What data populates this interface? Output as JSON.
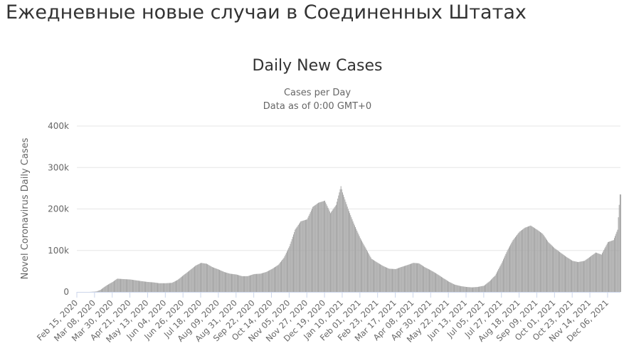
{
  "page": {
    "heading": "Ежедневные новые случаи в Соединенных Штатах"
  },
  "chart_data": {
    "type": "bar",
    "title": "Daily New Cases",
    "subtitle": [
      "Cases per Day",
      "Data as of 0:00 GMT+0"
    ],
    "ylabel": "Novel Coronavirus Daily Cases",
    "xlabel": "",
    "ylim": [
      0,
      400000
    ],
    "yticks": [
      0,
      100000,
      200000,
      300000,
      400000
    ],
    "ytick_labels": [
      "0",
      "100k",
      "200k",
      "300k",
      "400k"
    ],
    "grid": true,
    "legend": "none",
    "bar_color": "#a3a3a3",
    "x_start": "2020-02-15",
    "x_end": "2021-12-22",
    "xtick_labels": [
      "Feb 15, 2020",
      "Mar 08, 2020",
      "Mar 30, 2020",
      "Apr 21, 2020",
      "May 13, 2020",
      "Jun 04, 2020",
      "Jun 26, 2020",
      "Jul 18, 2020",
      "Aug 09, 2020",
      "Aug 31, 2020",
      "Sep 22, 2020",
      "Oct 14, 2020",
      "Nov 05, 2020",
      "Nov 27, 2020",
      "Dec 19, 2020",
      "Jan 10, 2021",
      "Feb 01, 2021",
      "Feb 23, 2021",
      "Mar 17, 2021",
      "Apr 08, 2021",
      "Apr 30, 2021",
      "May 22, 2021",
      "Jun 13, 2021",
      "Jul 05, 2021",
      "Jul 27, 2021",
      "Aug 18, 2021",
      "Sep 09, 2021",
      "Oct 01, 2021",
      "Oct 23, 2021",
      "Nov 14, 2021",
      "Dec 06, 2021"
    ],
    "series": [
      {
        "values": [
          [
            "2020-02-15",
            0
          ],
          [
            "2020-03-01",
            0
          ],
          [
            "2020-03-10",
            1000
          ],
          [
            "2020-03-15",
            5000
          ],
          [
            "2020-03-22",
            15000
          ],
          [
            "2020-03-30",
            24000
          ],
          [
            "2020-04-05",
            32000
          ],
          [
            "2020-04-12",
            31000
          ],
          [
            "2020-04-21",
            30000
          ],
          [
            "2020-04-28",
            28000
          ],
          [
            "2020-05-05",
            26000
          ],
          [
            "2020-05-13",
            24000
          ],
          [
            "2020-05-20",
            23000
          ],
          [
            "2020-05-27",
            21000
          ],
          [
            "2020-06-04",
            21000
          ],
          [
            "2020-06-12",
            22000
          ],
          [
            "2020-06-19",
            29000
          ],
          [
            "2020-06-26",
            40000
          ],
          [
            "2020-07-04",
            52000
          ],
          [
            "2020-07-11",
            63000
          ],
          [
            "2020-07-18",
            70000
          ],
          [
            "2020-07-25",
            68000
          ],
          [
            "2020-08-01",
            60000
          ],
          [
            "2020-08-09",
            54000
          ],
          [
            "2020-08-16",
            48000
          ],
          [
            "2020-08-23",
            44000
          ],
          [
            "2020-08-31",
            42000
          ],
          [
            "2020-09-07",
            38000
          ],
          [
            "2020-09-14",
            38000
          ],
          [
            "2020-09-22",
            43000
          ],
          [
            "2020-09-30",
            44000
          ],
          [
            "2020-10-07",
            48000
          ],
          [
            "2020-10-14",
            55000
          ],
          [
            "2020-10-22",
            65000
          ],
          [
            "2020-10-29",
            82000
          ],
          [
            "2020-11-05",
            110000
          ],
          [
            "2020-11-12",
            150000
          ],
          [
            "2020-11-19",
            170000
          ],
          [
            "2020-11-27",
            175000
          ],
          [
            "2020-12-04",
            205000
          ],
          [
            "2020-12-11",
            215000
          ],
          [
            "2020-12-19",
            220000
          ],
          [
            "2020-12-26",
            190000
          ],
          [
            "2021-01-02",
            210000
          ],
          [
            "2021-01-08",
            255000
          ],
          [
            "2021-01-10",
            240000
          ],
          [
            "2021-01-17",
            200000
          ],
          [
            "2021-01-24",
            165000
          ],
          [
            "2021-02-01",
            130000
          ],
          [
            "2021-02-08",
            105000
          ],
          [
            "2021-02-15",
            80000
          ],
          [
            "2021-02-23",
            70000
          ],
          [
            "2021-03-02",
            62000
          ],
          [
            "2021-03-09",
            56000
          ],
          [
            "2021-03-17",
            55000
          ],
          [
            "2021-03-24",
            60000
          ],
          [
            "2021-04-01",
            65000
          ],
          [
            "2021-04-08",
            70000
          ],
          [
            "2021-04-15",
            69000
          ],
          [
            "2021-04-22",
            60000
          ],
          [
            "2021-04-30",
            52000
          ],
          [
            "2021-05-07",
            44000
          ],
          [
            "2021-05-14",
            35000
          ],
          [
            "2021-05-22",
            25000
          ],
          [
            "2021-05-29",
            18000
          ],
          [
            "2021-06-06",
            14000
          ],
          [
            "2021-06-13",
            12000
          ],
          [
            "2021-06-20",
            11000
          ],
          [
            "2021-06-27",
            12000
          ],
          [
            "2021-07-05",
            15000
          ],
          [
            "2021-07-12",
            26000
          ],
          [
            "2021-07-19",
            40000
          ],
          [
            "2021-07-27",
            70000
          ],
          [
            "2021-08-03",
            100000
          ],
          [
            "2021-08-10",
            125000
          ],
          [
            "2021-08-18",
            145000
          ],
          [
            "2021-08-25",
            155000
          ],
          [
            "2021-09-01",
            160000
          ],
          [
            "2021-09-09",
            150000
          ],
          [
            "2021-09-16",
            140000
          ],
          [
            "2021-09-23",
            120000
          ],
          [
            "2021-10-01",
            105000
          ],
          [
            "2021-10-08",
            95000
          ],
          [
            "2021-10-15",
            85000
          ],
          [
            "2021-10-23",
            75000
          ],
          [
            "2021-10-30",
            72000
          ],
          [
            "2021-11-07",
            75000
          ],
          [
            "2021-11-14",
            85000
          ],
          [
            "2021-11-21",
            95000
          ],
          [
            "2021-11-28",
            90000
          ],
          [
            "2021-12-06",
            120000
          ],
          [
            "2021-12-13",
            125000
          ],
          [
            "2021-12-18",
            150000
          ],
          [
            "2021-12-20",
            210000
          ],
          [
            "2021-12-21",
            235000
          ]
        ]
      }
    ]
  }
}
